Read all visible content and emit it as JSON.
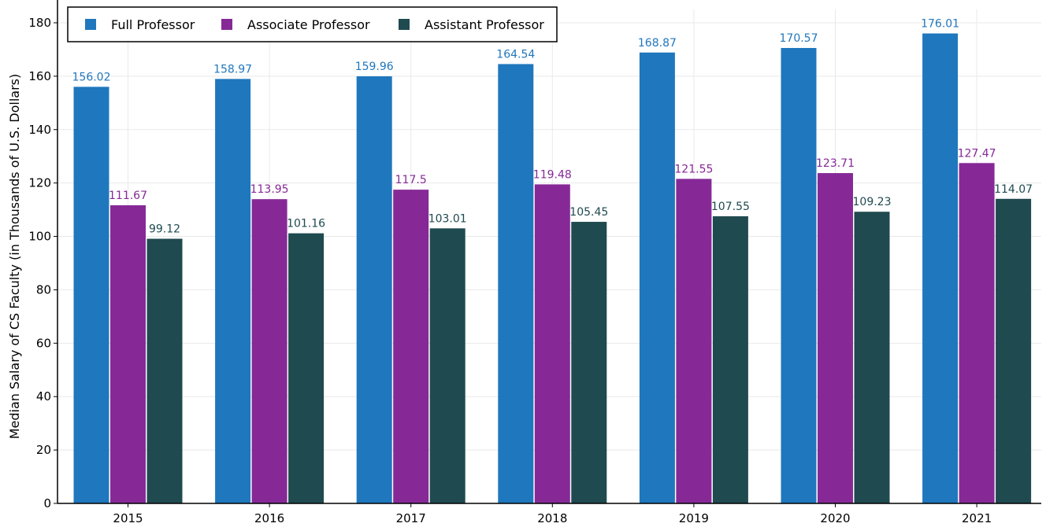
{
  "chart_data": {
    "type": "bar",
    "title": "",
    "xlabel": "",
    "ylabel": "Median Salary of CS Faculty (in Thousands of U.S. Dollars)",
    "categories": [
      "2015",
      "2016",
      "2017",
      "2018",
      "2019",
      "2020",
      "2021"
    ],
    "series": [
      {
        "name": "Full Professor",
        "color": "#1f77bd",
        "label_color": "#1f77bd",
        "values": [
          156.02,
          158.97,
          159.96,
          164.54,
          168.87,
          170.57,
          176.01
        ],
        "value_labels": [
          "156.02",
          "158.97",
          "159.96",
          "164.54",
          "168.87",
          "170.57",
          "176.01"
        ]
      },
      {
        "name": "Associate Professor",
        "color": "#862997",
        "label_color": "#862997",
        "values": [
          111.67,
          113.95,
          117.5,
          119.48,
          121.55,
          123.71,
          127.47
        ],
        "value_labels": [
          "111.67",
          "113.95",
          "117.5",
          "119.48",
          "121.55",
          "123.71",
          "127.47"
        ]
      },
      {
        "name": "Assistant Professor",
        "color": "#1f4a4f",
        "label_color": "#1f4a4f",
        "values": [
          99.12,
          101.16,
          103.01,
          105.45,
          107.55,
          109.23,
          114.07
        ],
        "value_labels": [
          "99.12",
          "101.16",
          "103.01",
          "105.45",
          "107.55",
          "109.23",
          "114.07"
        ]
      }
    ],
    "ylim": [
      0,
      185
    ],
    "yticks": [
      0,
      20,
      40,
      60,
      80,
      100,
      120,
      140,
      160,
      180
    ],
    "grid": true,
    "legend": {
      "position": "top-left",
      "frame": true
    }
  }
}
